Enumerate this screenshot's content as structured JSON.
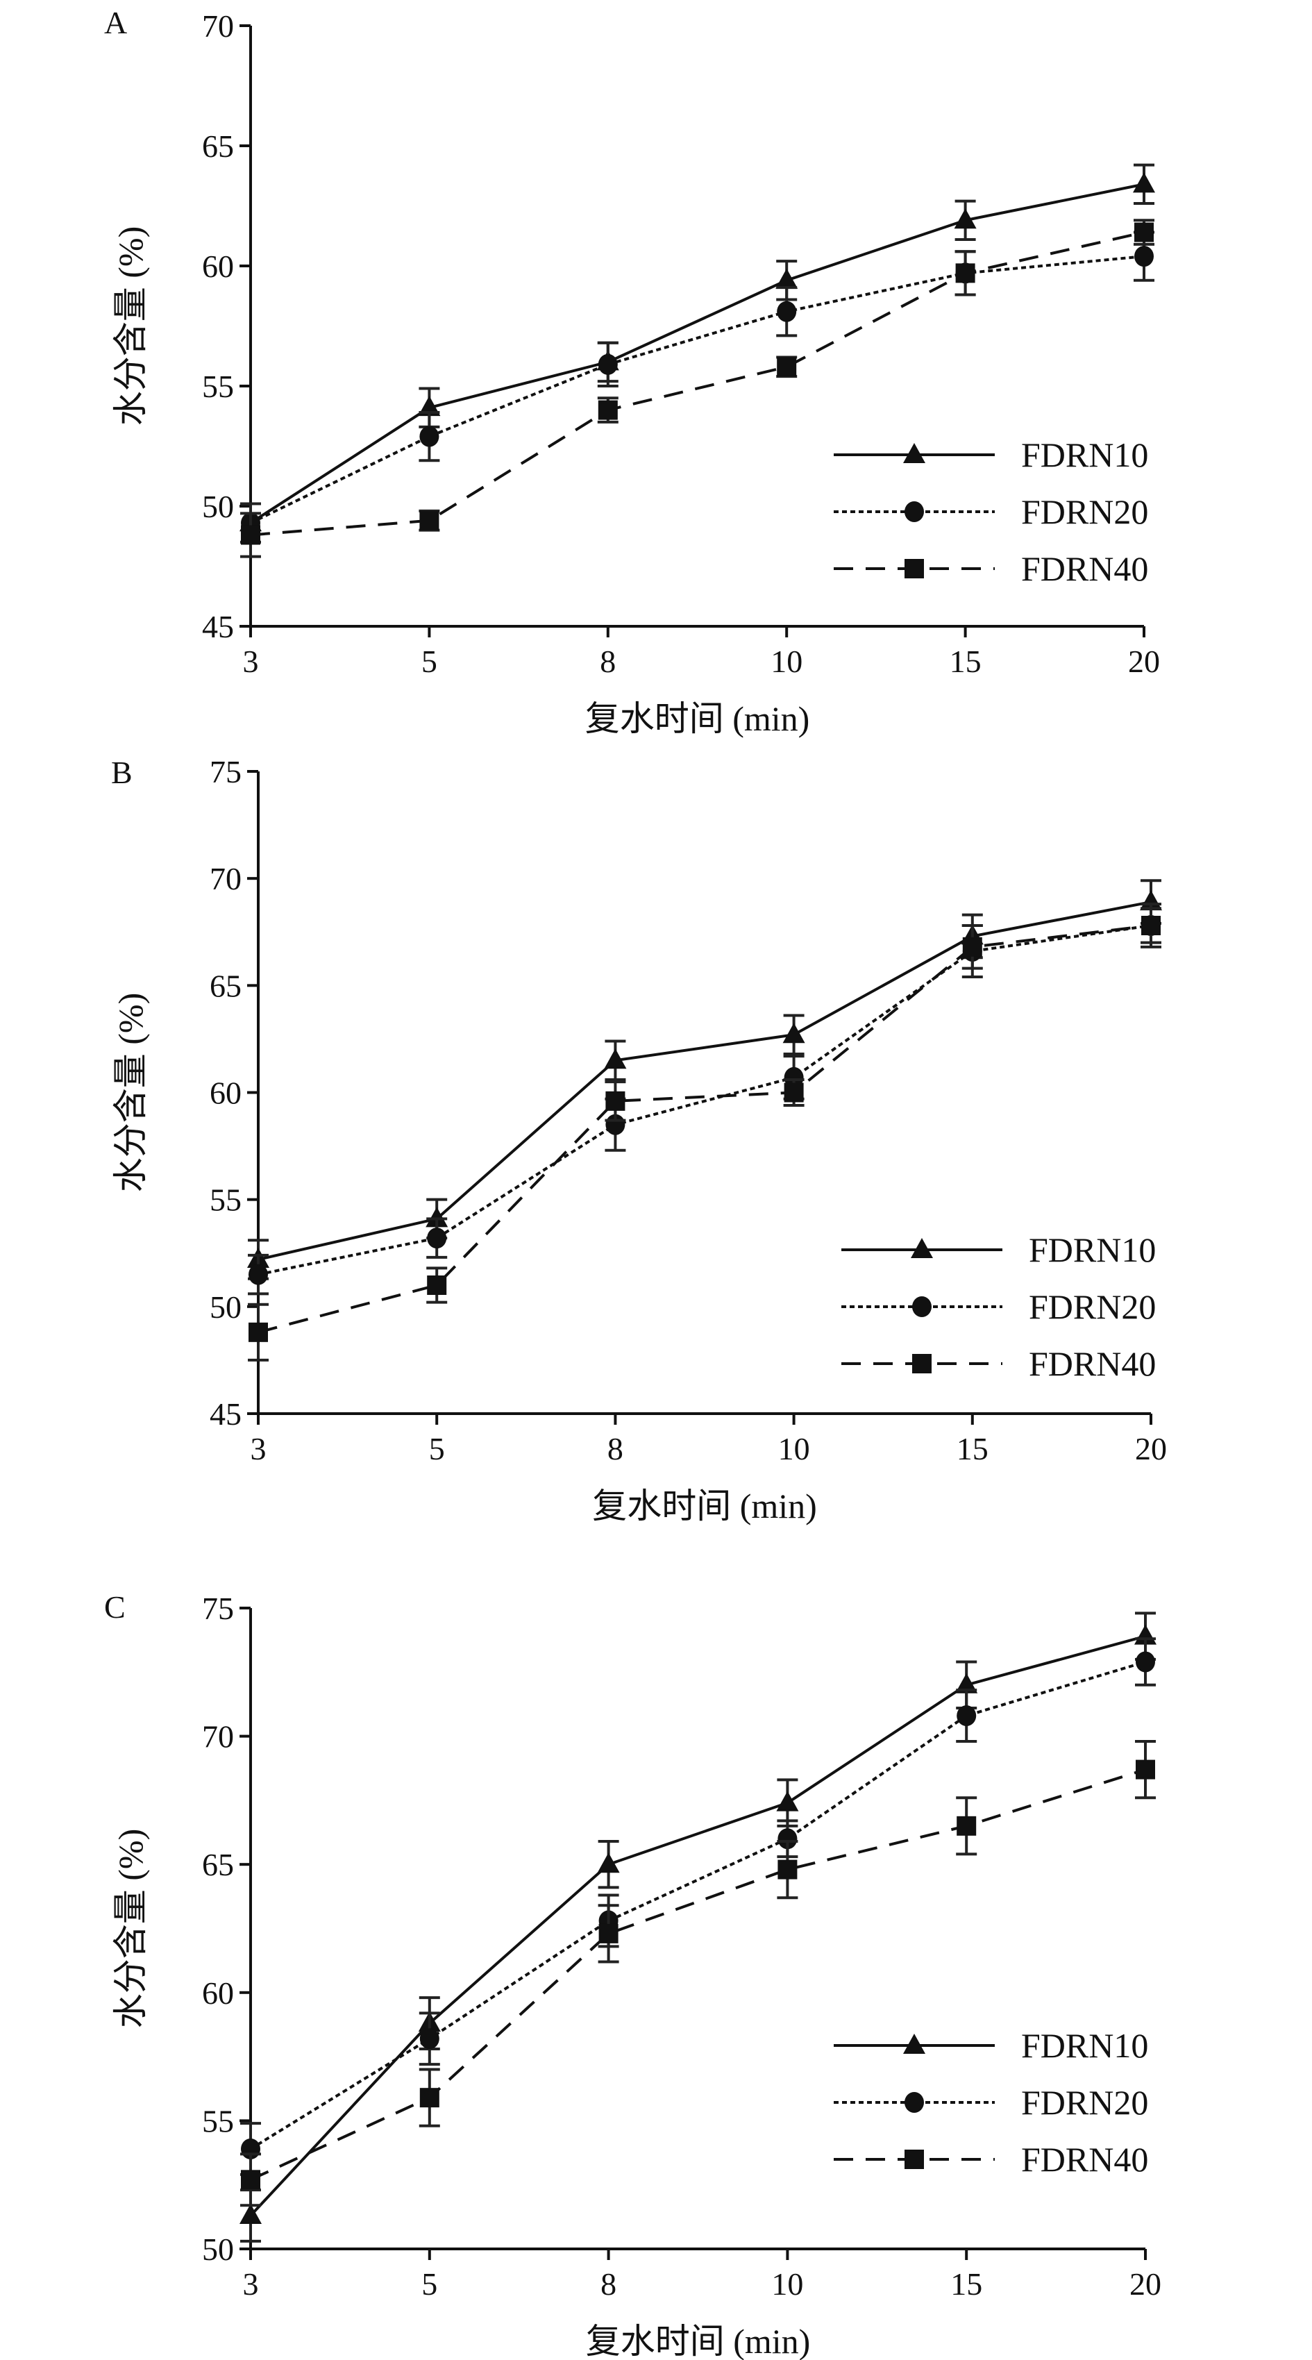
{
  "chart_data": [
    {
      "type": "line",
      "panel_label": "A",
      "xlabel": "复水时间 (min)",
      "ylabel": "水分含量 (%)",
      "categories": [
        "3",
        "5",
        "8",
        "10",
        "15",
        "20"
      ],
      "ylim": [
        45,
        70
      ],
      "yticks": [
        45,
        50,
        55,
        60,
        65,
        70
      ],
      "legend_placement": "bottom-right",
      "series": [
        {
          "name": "FDRN10",
          "marker": "triangle",
          "line": "solid",
          "values": [
            49.3,
            54.1,
            56.0,
            59.4,
            61.9,
            63.4
          ],
          "errors": [
            0.8,
            0.8,
            0.8,
            0.8,
            0.8,
            0.8
          ]
        },
        {
          "name": "FDRN20",
          "marker": "circle",
          "line": "dotted",
          "values": [
            49.3,
            52.9,
            55.9,
            58.1,
            59.7,
            60.4
          ],
          "errors": [
            0.8,
            1.0,
            0.9,
            1.0,
            0.9,
            1.0
          ]
        },
        {
          "name": "FDRN40",
          "marker": "square",
          "line": "dashed",
          "values": [
            48.8,
            49.4,
            54.0,
            55.8,
            59.7,
            61.4
          ],
          "errors": [
            0.9,
            0.4,
            0.5,
            0.4,
            0.9,
            0.5
          ]
        }
      ]
    },
    {
      "type": "line",
      "panel_label": "B",
      "xlabel": "复水时间 (min)",
      "ylabel": "水分含量 (%)",
      "categories": [
        "3",
        "5",
        "8",
        "10",
        "15",
        "20"
      ],
      "ylim": [
        45,
        75
      ],
      "yticks": [
        45,
        50,
        55,
        60,
        65,
        70,
        75
      ],
      "legend_placement": "bottom-right",
      "series": [
        {
          "name": "FDRN10",
          "marker": "triangle",
          "line": "solid",
          "values": [
            52.2,
            54.1,
            61.5,
            62.7,
            67.3,
            68.9
          ],
          "errors": [
            0.9,
            0.9,
            0.9,
            0.9,
            1.0,
            1.0
          ]
        },
        {
          "name": "FDRN20",
          "marker": "circle",
          "line": "dotted",
          "values": [
            51.5,
            53.2,
            58.5,
            60.7,
            66.6,
            67.8
          ],
          "errors": [
            0.9,
            0.9,
            1.2,
            1.0,
            1.2,
            1.0
          ]
        },
        {
          "name": "FDRN40",
          "marker": "square",
          "line": "dashed",
          "values": [
            48.8,
            51.0,
            59.6,
            60.0,
            66.8,
            67.8
          ],
          "errors": [
            1.3,
            0.8,
            0.9,
            0.6,
            1.0,
            0.8
          ]
        }
      ]
    },
    {
      "type": "line",
      "panel_label": "C",
      "xlabel": "复水时间 (min)",
      "ylabel": "水分含量 (%)",
      "categories": [
        "3",
        "5",
        "8",
        "10",
        "15",
        "20"
      ],
      "ylim": [
        50,
        75
      ],
      "yticks": [
        50,
        55,
        60,
        65,
        70,
        75
      ],
      "legend_placement": "bottom-right",
      "series": [
        {
          "name": "FDRN10",
          "marker": "triangle",
          "line": "solid",
          "values": [
            51.3,
            58.8,
            65.0,
            67.4,
            72.0,
            73.9
          ],
          "errors": [
            1.0,
            1.0,
            0.9,
            0.9,
            0.9,
            0.9
          ]
        },
        {
          "name": "FDRN20",
          "marker": "circle",
          "line": "dotted",
          "values": [
            53.9,
            58.2,
            62.8,
            66.0,
            70.8,
            72.9
          ],
          "errors": [
            1.0,
            1.0,
            1.0,
            0.7,
            1.0,
            0.9
          ]
        },
        {
          "name": "FDRN40",
          "marker": "square",
          "line": "dashed",
          "values": [
            52.7,
            55.9,
            62.3,
            64.8,
            66.5,
            68.7
          ],
          "errors": [
            1.0,
            1.1,
            1.1,
            1.1,
            1.1,
            1.1
          ]
        }
      ]
    }
  ]
}
